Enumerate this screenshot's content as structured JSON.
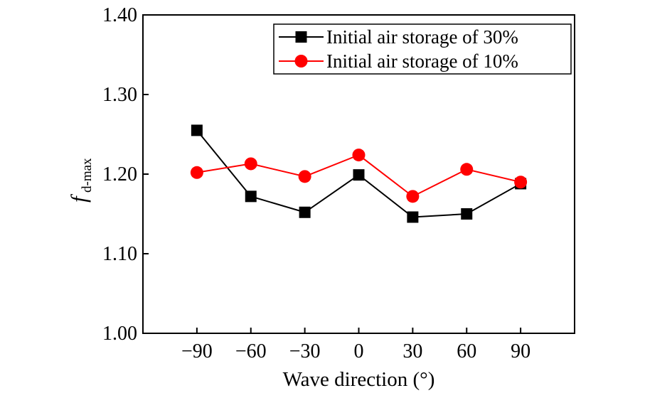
{
  "chart_data": {
    "type": "line",
    "title": "",
    "xlabel": "Wave direction (°)",
    "ylabel": "f",
    "ylabel_sub": "d-max",
    "x": [
      -90,
      -60,
      -30,
      0,
      30,
      60,
      90
    ],
    "x_tick_labels": [
      "−90",
      "−60",
      "−30",
      "0",
      "30",
      "60",
      "90"
    ],
    "xlim": [
      -120,
      120
    ],
    "ylim": [
      1.0,
      1.4
    ],
    "y_ticks": [
      1.0,
      1.1,
      1.2,
      1.3,
      1.4
    ],
    "y_tick_labels": [
      "1.00",
      "1.10",
      "1.20",
      "1.30",
      "1.40"
    ],
    "grid": false,
    "legend_position": "top-right",
    "series": [
      {
        "name": "Initial air storage of 30%",
        "marker": "square",
        "color": "#000000",
        "values": [
          1.255,
          1.172,
          1.152,
          1.199,
          1.146,
          1.15,
          1.188
        ]
      },
      {
        "name": "Initial air storage of 10%",
        "marker": "circle",
        "color": "#ff0000",
        "values": [
          1.202,
          1.213,
          1.197,
          1.224,
          1.172,
          1.206,
          1.19
        ]
      }
    ]
  }
}
